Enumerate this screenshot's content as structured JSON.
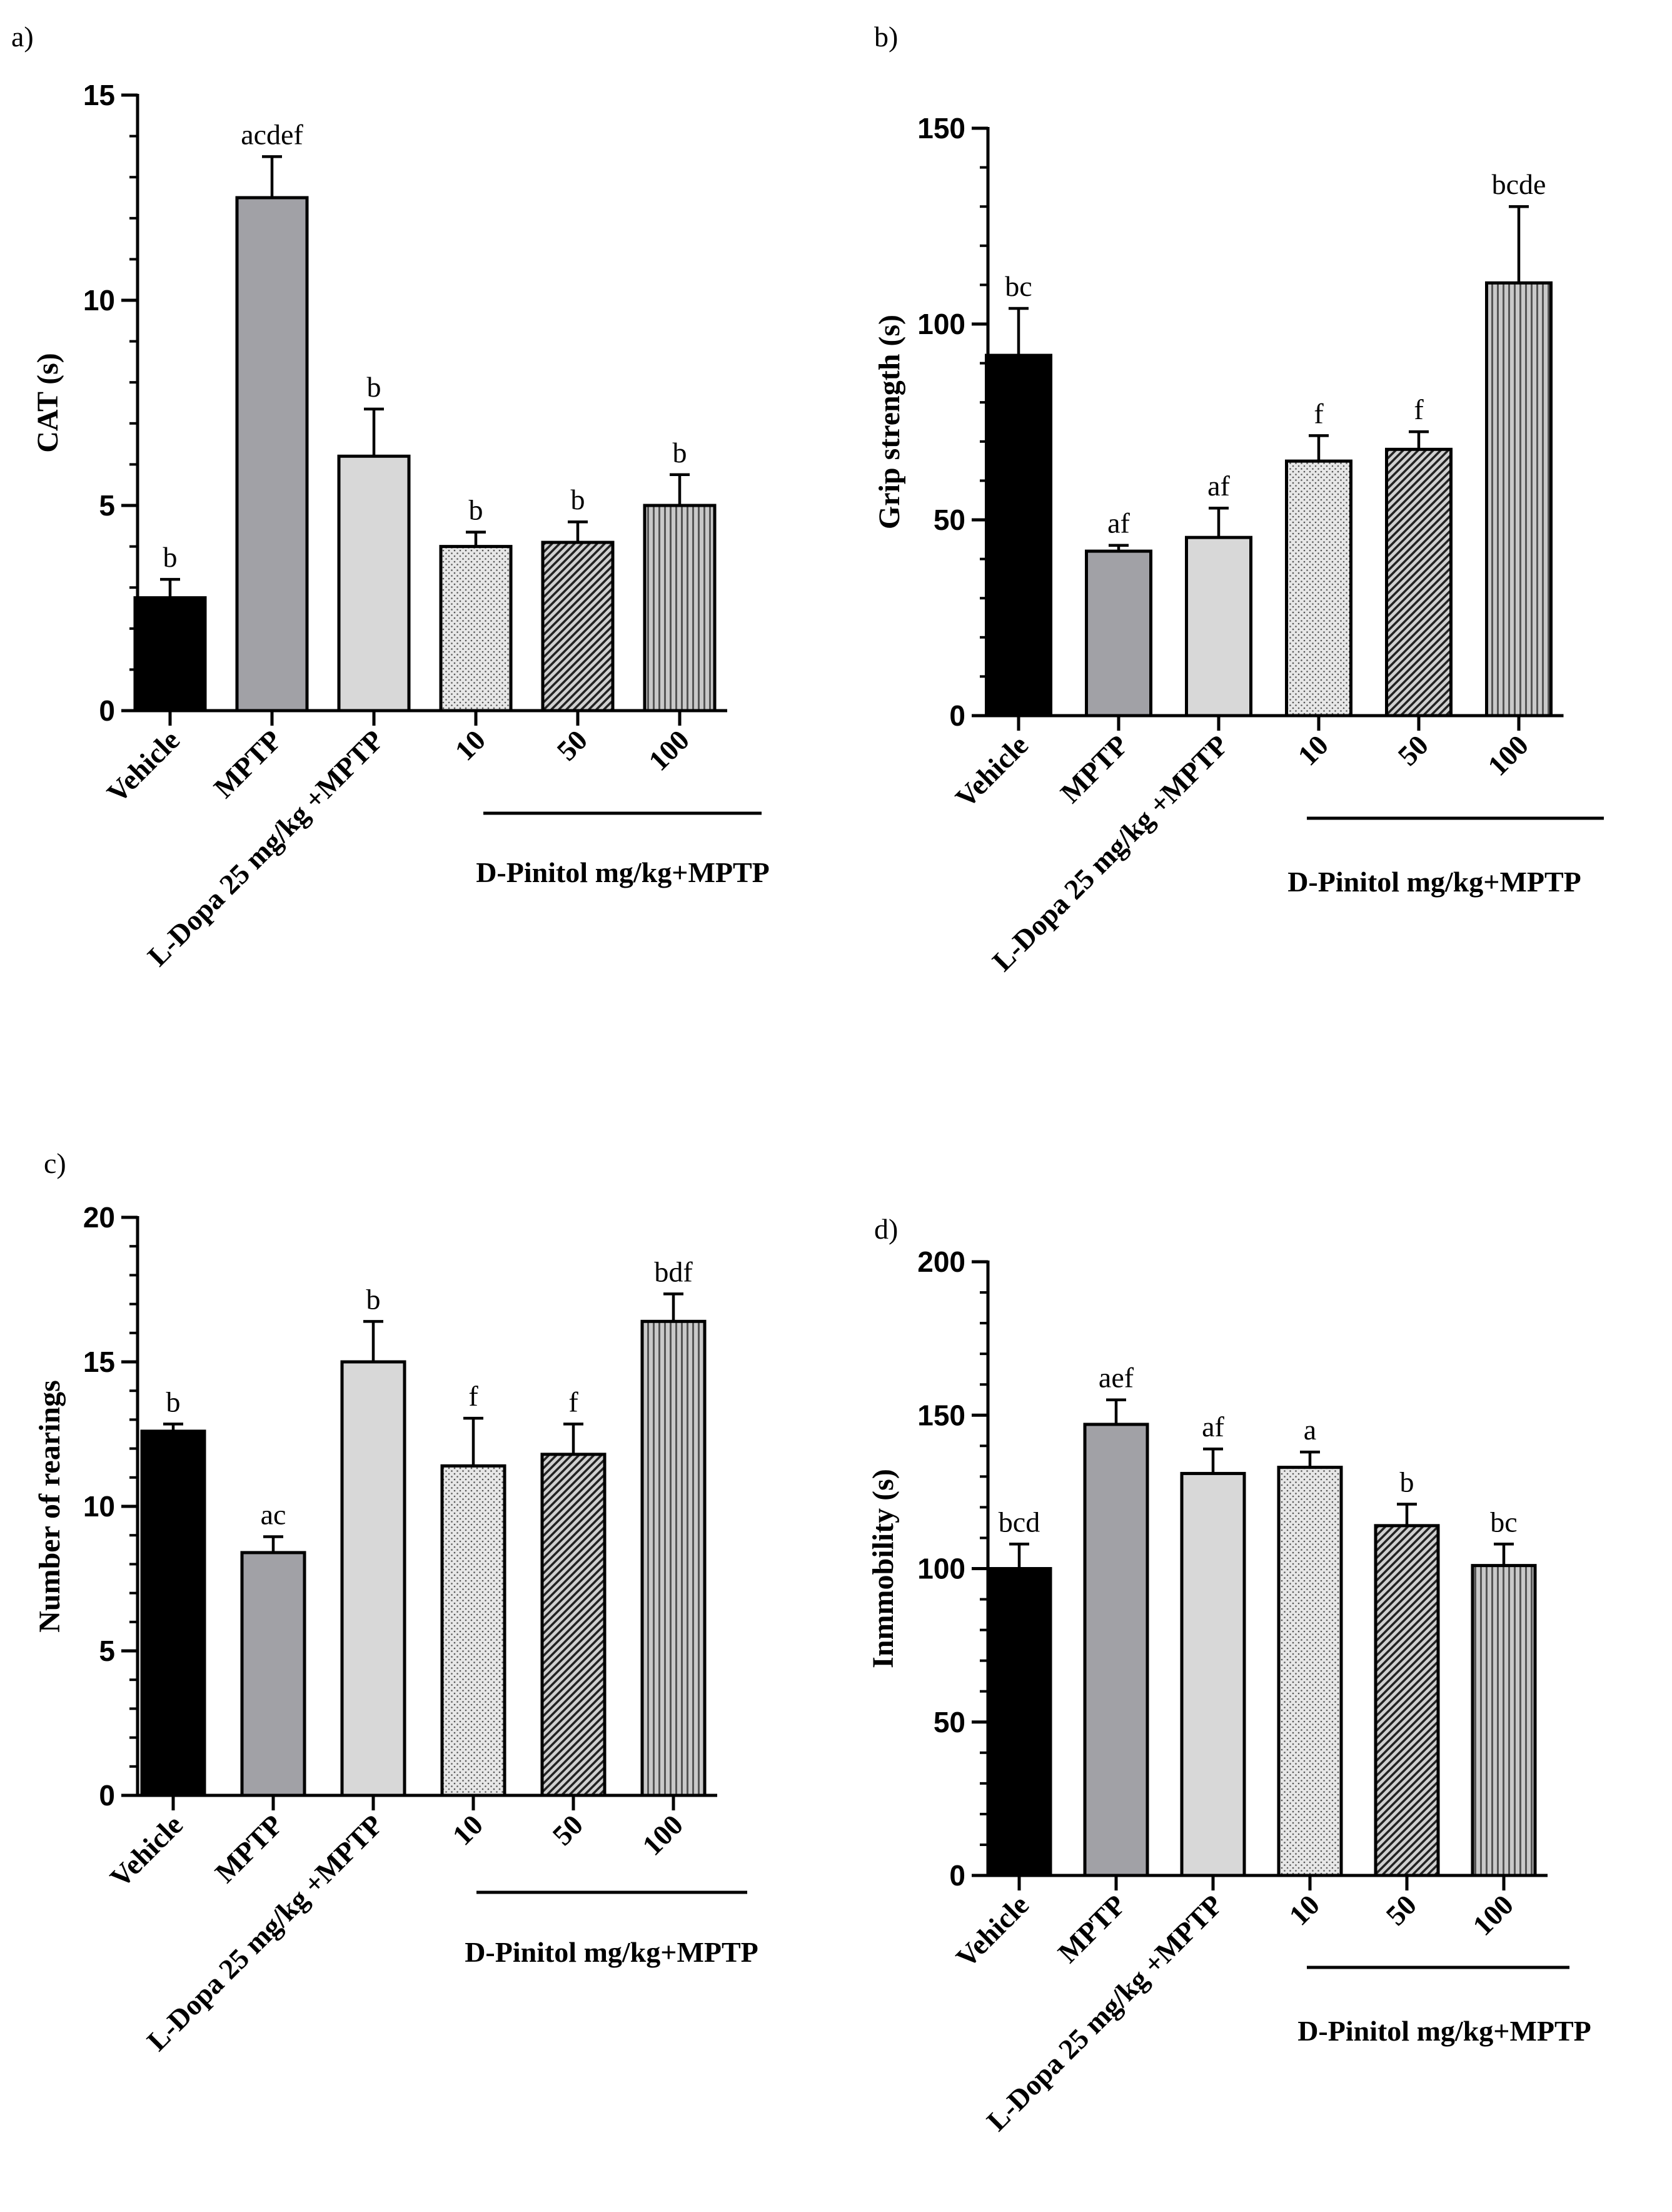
{
  "chart_data": [
    {
      "panel": "a)",
      "type": "bar",
      "ylabel": "CAT (s)",
      "ylim": [
        0,
        15
      ],
      "yticks": [
        0,
        5,
        10,
        15
      ],
      "minor_ticks": [
        1,
        2,
        3,
        4,
        6,
        7,
        8,
        9,
        11,
        12,
        13,
        14
      ],
      "categories": [
        "Vehicle",
        "MPTP",
        "L-Dopa 25 mg/kg +MPTP",
        "10",
        "50",
        "100"
      ],
      "values": [
        2.75,
        12.5,
        6.2,
        4.0,
        4.1,
        5.0
      ],
      "errors": [
        0.45,
        1.0,
        1.15,
        0.35,
        0.5,
        0.75
      ],
      "significance": [
        "b",
        "acdef",
        "b",
        "b",
        "b",
        "b"
      ],
      "group_label": "D-Pinitol mg/kg+MPTP"
    },
    {
      "panel": "b)",
      "type": "bar",
      "ylabel": "Grip strength (s)",
      "ylim": [
        0,
        150
      ],
      "yticks": [
        0,
        50,
        100,
        150
      ],
      "minor_ticks": [
        10,
        20,
        30,
        40,
        60,
        70,
        80,
        90,
        110,
        120,
        130,
        140
      ],
      "categories": [
        "Vehicle",
        "MPTP",
        "L-Dopa 25 mg/kg +MPTP",
        "10",
        "50",
        "100"
      ],
      "values": [
        92,
        42,
        45.5,
        65,
        68,
        110.5
      ],
      "errors": [
        12,
        1.5,
        7.5,
        6.5,
        4.5,
        19.5
      ],
      "significance": [
        "bc",
        "af",
        "af",
        "f",
        "f",
        "bcde"
      ],
      "group_label": "D-Pinitol mg/kg+MPTP"
    },
    {
      "panel": "c)",
      "type": "bar",
      "ylabel": "Number of rearings",
      "ylim": [
        0,
        20
      ],
      "yticks": [
        0,
        5,
        10,
        15,
        20
      ],
      "minor_ticks": [
        1,
        2,
        3,
        4,
        6,
        7,
        8,
        9,
        11,
        12,
        13,
        14,
        16,
        17,
        18,
        19
      ],
      "categories": [
        "Vehicle",
        "MPTP",
        "L-Dopa 25 mg/kg +MPTP",
        "10",
        "50",
        "100"
      ],
      "values": [
        12.6,
        8.4,
        15.0,
        11.4,
        11.8,
        16.4
      ],
      "errors": [
        0.25,
        0.55,
        1.4,
        1.65,
        1.05,
        0.95
      ],
      "significance": [
        "b",
        "ac",
        "b",
        "f",
        "f",
        "bdf"
      ],
      "group_label": "D-Pinitol mg/kg+MPTP"
    },
    {
      "panel": "d)",
      "type": "bar",
      "ylabel": "Inmmobility (s)",
      "ylim": [
        0,
        200
      ],
      "yticks": [
        0,
        50,
        100,
        150,
        200
      ],
      "minor_ticks": [
        10,
        20,
        30,
        40,
        60,
        70,
        80,
        90,
        110,
        120,
        130,
        140,
        160,
        170,
        180,
        190
      ],
      "categories": [
        "Vehicle",
        "MPTP",
        "L-Dopa 25 mg/kg +MPTP",
        "10",
        "50",
        "100"
      ],
      "values": [
        100,
        147,
        131,
        133,
        114,
        101
      ],
      "errors": [
        8,
        8,
        8,
        5,
        7,
        7
      ],
      "significance": [
        "bcd",
        "aef",
        "af",
        "a",
        "b",
        "bc"
      ],
      "group_label": "D-Pinitol mg/kg+MPTP"
    }
  ],
  "fills": [
    "#000000",
    "#a1a1a6",
    "#d8d8d8",
    "dots",
    "diag",
    "vert"
  ]
}
